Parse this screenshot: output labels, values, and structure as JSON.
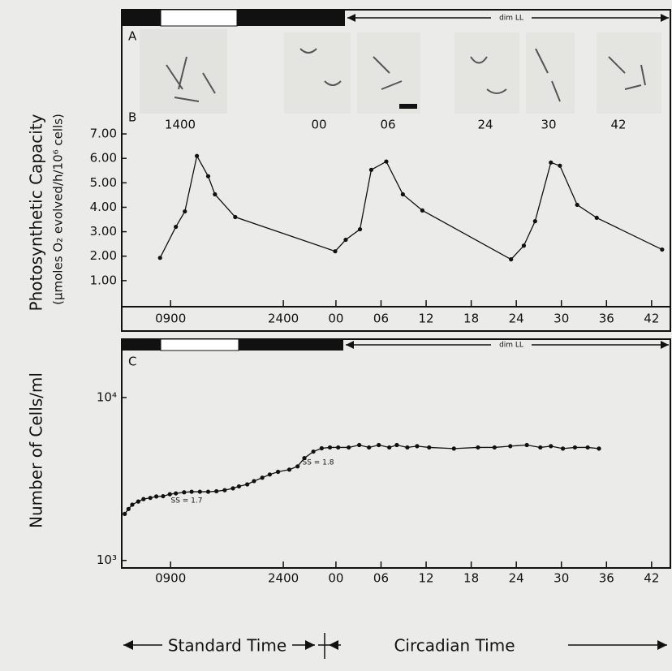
{
  "panel_a": {
    "label": "A",
    "light_label": "dim LL",
    "image_labels": [
      "1400",
      "00",
      "06",
      "24",
      "30",
      "42"
    ]
  },
  "chart_data": [
    {
      "type": "line",
      "label": "B",
      "ylabel": "Photosynthetic Capacity",
      "ylabel_units": "(μmoles O₂ evolved/h/10⁶ cells)",
      "color": "#111111",
      "x": [
        7.6,
        9.7,
        10.9,
        12.5,
        14.0,
        14.9,
        17.6,
        30.9,
        32.3,
        34.2,
        35.7,
        37.7,
        39.9,
        42.5,
        54.3,
        56.0,
        57.5,
        59.6,
        60.8,
        63.1,
        65.7,
        74.4
      ],
      "values": [
        1.93,
        3.2,
        3.83,
        6.1,
        5.27,
        4.53,
        3.6,
        2.2,
        2.67,
        3.1,
        5.53,
        5.87,
        4.53,
        3.87,
        1.87,
        2.43,
        3.43,
        5.83,
        5.7,
        4.1,
        3.57,
        2.27
      ],
      "xlim": [
        2.5,
        75.5
      ],
      "ylim": [
        0,
        7.3
      ],
      "yticks": [
        {
          "value": 1,
          "label": "1.00"
        },
        {
          "value": 2,
          "label": "2.00"
        },
        {
          "value": 3,
          "label": "3.00"
        },
        {
          "value": 4,
          "label": "4.00"
        },
        {
          "value": 5,
          "label": "5.00"
        },
        {
          "value": 6,
          "label": "6.00"
        },
        {
          "value": 7,
          "label": "7.00"
        }
      ],
      "xticks": [
        {
          "value": 9,
          "label": "0900"
        },
        {
          "value": 24,
          "label": "2400"
        },
        {
          "value": 31,
          "label": "00"
        },
        {
          "value": 37,
          "label": "06"
        },
        {
          "value": 43,
          "label": "12"
        },
        {
          "value": 49,
          "label": "18"
        },
        {
          "value": 55,
          "label": "24"
        },
        {
          "value": 61,
          "label": "30"
        },
        {
          "value": 67,
          "label": "36"
        },
        {
          "value": 73,
          "label": "42"
        }
      ]
    },
    {
      "type": "line",
      "label": "C",
      "ylabel": "Number of Cells/ml",
      "light_label": "dim LL",
      "annotations": [
        "SS = 1.7",
        "SS = 1.8"
      ],
      "log_scale": true,
      "color": "#111111",
      "x": [
        2.9,
        3.4,
        3.9,
        4.7,
        5.4,
        6.3,
        7.1,
        8.0,
        8.9,
        9.7,
        10.8,
        11.8,
        12.9,
        14.0,
        15.1,
        16.2,
        17.3,
        18.1,
        19.2,
        20.1,
        21.2,
        22.2,
        23.3,
        24.8,
        25.9,
        26.8,
        28.0,
        29.1,
        30.2,
        31.3,
        32.7,
        34.1,
        35.4,
        36.7,
        38.1,
        39.1,
        40.5,
        41.8,
        43.4,
        46.7,
        49.9,
        52.1,
        54.2,
        56.4,
        58.2,
        59.6,
        61.2,
        62.8,
        64.5,
        66.0
      ],
      "values": [
        1930,
        2070,
        2200,
        2300,
        2380,
        2420,
        2470,
        2480,
        2550,
        2580,
        2620,
        2640,
        2640,
        2640,
        2660,
        2700,
        2770,
        2850,
        2930,
        3070,
        3220,
        3370,
        3500,
        3610,
        3780,
        4250,
        4660,
        4880,
        4940,
        4940,
        4940,
        5110,
        4940,
        5110,
        4940,
        5110,
        4940,
        5030,
        4940,
        4860,
        4940,
        4940,
        5030,
        5110,
        4940,
        5030,
        4860,
        4940,
        4940,
        4860
      ],
      "xlim": [
        2.5,
        75.5
      ],
      "ylim": [
        920,
        19000
      ],
      "yticks": [
        {
          "value": 1000,
          "label": "10³"
        },
        {
          "value": 10000,
          "label": "10⁴"
        }
      ],
      "xticks": [
        {
          "value": 9,
          "label": "0900"
        },
        {
          "value": 24,
          "label": "2400"
        },
        {
          "value": 31,
          "label": "00"
        },
        {
          "value": 37,
          "label": "06"
        },
        {
          "value": 43,
          "label": "12"
        },
        {
          "value": 49,
          "label": "18"
        },
        {
          "value": 55,
          "label": "24"
        },
        {
          "value": 61,
          "label": "30"
        },
        {
          "value": 67,
          "label": "36"
        },
        {
          "value": 73,
          "label": "42"
        }
      ]
    }
  ],
  "footer": {
    "standard_time": "Standard Time",
    "circadian_time": "Circadian Time"
  }
}
